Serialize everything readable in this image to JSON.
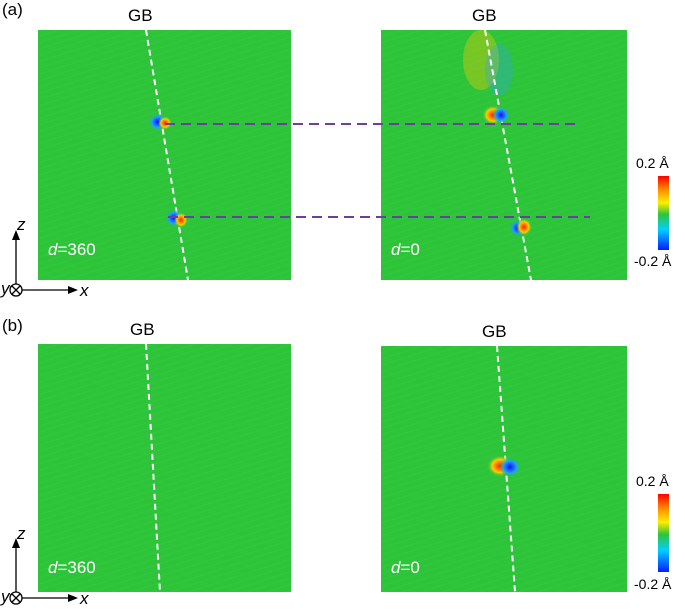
{
  "panel_a": {
    "label": "(a)",
    "left": {
      "gb": "GB",
      "d_var": "d",
      "d_value": "=360"
    },
    "right": {
      "gb": "GB",
      "d_var": "d",
      "d_value": "=0"
    }
  },
  "panel_b": {
    "label": "(b)",
    "left": {
      "gb": "GB",
      "d_var": "d",
      "d_value": "=360"
    },
    "right": {
      "gb": "GB",
      "d_var": "d",
      "d_value": "=0"
    }
  },
  "colorbar": {
    "max": "0.2 Å",
    "min": "-0.2 Å"
  },
  "axes": {
    "z": "z",
    "y": "y",
    "x": "x"
  },
  "colors": {
    "green": "#2ec43a",
    "dash": "#6a3fa0"
  }
}
